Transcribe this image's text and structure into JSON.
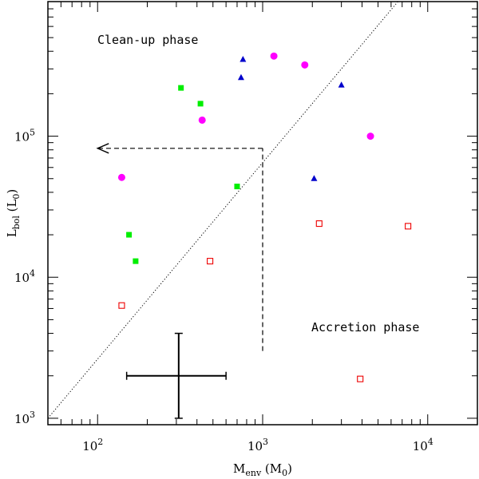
{
  "chart_data": {
    "type": "scatter",
    "title": "",
    "xlabel": {
      "main": "M",
      "sub": "env",
      "unit_main": "M",
      "unit_sub": "0"
    },
    "ylabel": {
      "main": "L",
      "sub": "bol",
      "unit_main": "L",
      "unit_sub": "0"
    },
    "xscale": "log",
    "yscale": "log",
    "xlim": [
      50,
      20000
    ],
    "ylim": [
      900,
      900000
    ],
    "xticks_major": [
      {
        "value": 100,
        "base": "10",
        "exp": "2"
      },
      {
        "value": 1000,
        "base": "10",
        "exp": "3"
      },
      {
        "value": 10000,
        "base": "10",
        "exp": "4"
      }
    ],
    "yticks_major": [
      {
        "value": 1000,
        "base": "10",
        "exp": "3"
      },
      {
        "value": 10000,
        "base": "10",
        "exp": "4"
      },
      {
        "value": 100000,
        "base": "10",
        "exp": "5"
      }
    ],
    "series": [
      {
        "name": "magenta circles",
        "marker": "circle",
        "color": "#ff00ff",
        "points": [
          [
            140,
            51000
          ],
          [
            430,
            130000
          ],
          [
            1170,
            370000
          ],
          [
            1800,
            320000
          ],
          [
            4500,
            100000
          ]
        ]
      },
      {
        "name": "green squares",
        "marker": "square",
        "color": "#00ee00",
        "points": [
          [
            320,
            220000
          ],
          [
            420,
            170000
          ],
          [
            700,
            44000
          ],
          [
            155,
            20000
          ],
          [
            170,
            13000
          ]
        ]
      },
      {
        "name": "blue triangles",
        "marker": "triangle",
        "color": "#0000cc",
        "points": [
          [
            760,
            350000
          ],
          [
            740,
            260000
          ],
          [
            3000,
            230000
          ],
          [
            2050,
            50000
          ]
        ]
      },
      {
        "name": "red open squares",
        "marker": "open-square",
        "color": "#ee0000",
        "points": [
          [
            2200,
            24000
          ],
          [
            7600,
            23000
          ],
          [
            480,
            13000
          ],
          [
            140,
            6300
          ],
          [
            3900,
            1900
          ]
        ]
      }
    ],
    "diagonal_line": {
      "style": "dotted",
      "from": [
        50,
        1000
      ],
      "to": [
        6600,
        900000
      ]
    },
    "arrow": {
      "style": "dashed",
      "vertical_from": [
        1000,
        3000
      ],
      "corner": [
        1000,
        82000
      ],
      "head": [
        100,
        82000
      ]
    },
    "error_bar": {
      "center": [
        310,
        2000
      ],
      "x_range": [
        150,
        600
      ],
      "y_range": [
        1000,
        4000
      ]
    },
    "annotations": [
      {
        "text": "Clean-up phase",
        "position": "top-left"
      },
      {
        "text": "Accretion phase",
        "position": "bottom-right"
      }
    ],
    "colors": {
      "frame": "#000000",
      "background": "#ffffff"
    }
  }
}
